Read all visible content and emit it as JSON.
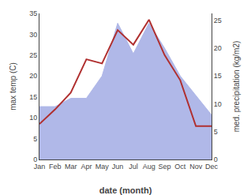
{
  "chart_data": {
    "type": "line",
    "xlabel": "date (month)",
    "ylabel": "max temp (C)",
    "y2label": "med. precipitation (kg/m2)",
    "categories": [
      "Jan",
      "Feb",
      "Mar",
      "Apr",
      "May",
      "Jun",
      "Jul",
      "Aug",
      "Sep",
      "Oct",
      "Nov",
      "Dec"
    ],
    "series": [
      {
        "type": "area",
        "axis": "y2",
        "color": "#b0b8e8",
        "values": [
          9.5,
          9.5,
          11.0,
          11.0,
          15.0,
          24.5,
          19.0,
          24.5,
          20.0,
          15.0,
          11.5,
          8.0
        ]
      },
      {
        "type": "line",
        "color": "#b03030",
        "values": [
          8.5,
          12.0,
          16.0,
          24.0,
          23.0,
          31.0,
          27.5,
          33.5,
          25.0,
          19.0,
          8.0,
          8.0
        ]
      }
    ],
    "ylim": [
      0,
      35
    ],
    "yticks": [
      0,
      5,
      10,
      15,
      20,
      25,
      30,
      35
    ],
    "y2lim": [
      0,
      26.25
    ],
    "y2ticks": [
      0,
      5,
      10,
      15,
      20,
      25
    ],
    "grid": false
  }
}
